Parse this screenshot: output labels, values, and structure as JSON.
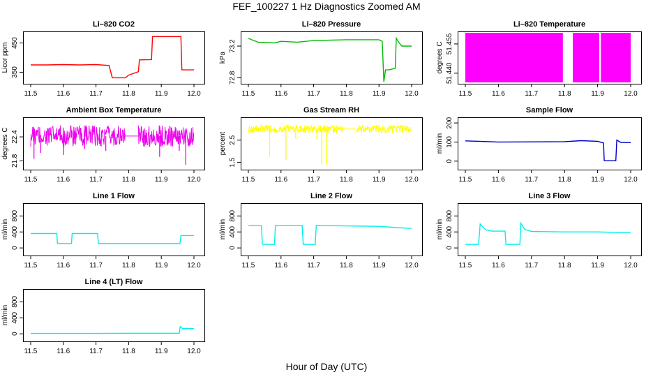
{
  "title": "FEF_100227  1 Hz Diagnostics Zoomed AM",
  "xlabel": "Hour of Day (UTC)",
  "chart_data": [
    {
      "type": "line",
      "title": "Li–820 CO2",
      "ylabel": "Licor ppm",
      "color": "#ff0000",
      "xlim": [
        11.5,
        12.0
      ],
      "xticks": [
        "11.5",
        "11.6",
        "11.7",
        "11.8",
        "11.9",
        "12.0"
      ],
      "ylim": [
        320,
        480
      ],
      "yticks": [
        "350",
        "450"
      ],
      "ytick_values": [
        350,
        450
      ],
      "series": [
        {
          "x": [
            11.5,
            11.55,
            11.6,
            11.65,
            11.7,
            11.74,
            11.75,
            11.753,
            11.79,
            11.8,
            11.83,
            11.833,
            11.87,
            11.873,
            11.96,
            11.963,
            12.0
          ],
          "y": [
            375,
            375,
            376,
            375,
            376,
            373,
            331,
            331,
            331,
            340,
            352,
            392,
            393,
            472,
            472,
            358,
            358
          ]
        }
      ]
    },
    {
      "type": "line",
      "title": "Li–820 Pressure",
      "ylabel": "kPa",
      "color": "#00bb00",
      "xlim": [
        11.5,
        12.0
      ],
      "xticks": [
        "11.5",
        "11.6",
        "11.7",
        "11.8",
        "11.9",
        "12.0"
      ],
      "ylim": [
        72.76,
        73.35
      ],
      "yticks": [
        "72.8",
        "73.2"
      ],
      "ytick_values": [
        72.8,
        73.2
      ],
      "series": [
        {
          "x": [
            11.5,
            11.51,
            11.53,
            11.58,
            11.6,
            11.65,
            11.7,
            11.8,
            11.9,
            11.91,
            11.915,
            11.92,
            11.93,
            11.95,
            11.953,
            11.96,
            11.97,
            12.0
          ],
          "y": [
            73.3,
            73.28,
            73.25,
            73.24,
            73.26,
            73.25,
            73.27,
            73.28,
            73.28,
            73.26,
            72.75,
            72.9,
            72.9,
            72.92,
            73.3,
            73.25,
            73.2,
            73.2
          ]
        }
      ]
    },
    {
      "type": "line",
      "title": "Li–820 Temperature",
      "ylabel": "degrees C",
      "color": "#ff00ff",
      "xlim": [
        11.5,
        12.0
      ],
      "xticks": [
        "11.5",
        "11.6",
        "11.7",
        "11.8",
        "11.9",
        "12.0"
      ],
      "ylim": [
        51.436,
        51.46
      ],
      "yticks": [
        "51.440",
        "51.455"
      ],
      "ytick_values": [
        51.44,
        51.455
      ],
      "blocks": [
        [
          11.5,
          11.795
        ],
        [
          11.825,
          11.905
        ],
        [
          11.91,
          12.0
        ]
      ],
      "spikes": [
        [
          11.51,
          51.446
        ],
        [
          11.845,
          51.444
        ],
        [
          11.87,
          51.448
        ],
        [
          11.935,
          51.444
        ]
      ]
    },
    {
      "type": "line",
      "title": "Ambient Box Temperature",
      "ylabel": "degrees C",
      "color": "#ee00ee",
      "xlim": [
        11.5,
        12.0
      ],
      "xticks": [
        "11.5",
        "11.6",
        "11.7",
        "11.8",
        "11.9",
        "12.0"
      ],
      "ylim": [
        21.65,
        22.82
      ],
      "yticks": [
        "21.8",
        "22.4"
      ],
      "ytick_values": [
        21.8,
        22.4
      ],
      "noise": {
        "center": 22.42,
        "amp": 0.27,
        "gaps": [
          [
            11.79,
            11.83
          ]
        ]
      },
      "spikes": [
        [
          11.51,
          21.85
        ],
        [
          11.53,
          22.0
        ],
        [
          11.6,
          21.95
        ],
        [
          11.665,
          22.1
        ],
        [
          11.73,
          22.05
        ],
        [
          11.895,
          21.9
        ],
        [
          11.955,
          22.05
        ],
        [
          11.975,
          21.7
        ]
      ]
    },
    {
      "type": "line",
      "title": "Gas Stream RH",
      "ylabel": "percent",
      "color": "#ffff00",
      "xlim": [
        11.5,
        12.0
      ],
      "xticks": [
        "11.5",
        "11.6",
        "11.7",
        "11.8",
        "11.9",
        "12.0"
      ],
      "ylim": [
        1.3,
        3.4
      ],
      "yticks": [
        "1.5",
        "2.5"
      ],
      "ytick_values": [
        1.5,
        2.5
      ],
      "noise": {
        "center": 3.0,
        "amp": 0.18,
        "gaps": [
          [
            11.79,
            11.83
          ]
        ]
      },
      "spikes": [
        [
          11.565,
          1.75
        ],
        [
          11.615,
          1.6
        ],
        [
          11.71,
          2.55
        ],
        [
          11.725,
          1.4
        ],
        [
          11.74,
          1.4
        ],
        [
          11.645,
          2.55
        ]
      ]
    },
    {
      "type": "line",
      "title": "Sample Flow",
      "ylabel": "ml/min",
      "color": "#0000cc",
      "xlim": [
        11.5,
        12.0
      ],
      "xticks": [
        "11.5",
        "11.6",
        "11.7",
        "11.8",
        "11.9",
        "12.0"
      ],
      "ylim": [
        -30,
        215
      ],
      "yticks": [
        "0",
        "100",
        "200"
      ],
      "ytick_values": [
        0,
        100,
        200
      ],
      "series": [
        {
          "x": [
            11.5,
            11.55,
            11.6,
            11.7,
            11.8,
            11.85,
            11.9,
            11.918,
            11.92,
            11.955,
            11.958,
            11.97,
            12.0
          ],
          "y": [
            106,
            103,
            100,
            101,
            102,
            107,
            104,
            95,
            2,
            2,
            110,
            98,
            97
          ]
        }
      ]
    },
    {
      "type": "line",
      "title": "Line 1 Flow",
      "ylabel": "ml/min",
      "color": "#00eeee",
      "xlim": [
        11.5,
        12.0
      ],
      "xticks": [
        "11.5",
        "11.6",
        "11.7",
        "11.8",
        "11.9",
        "12.0"
      ],
      "ylim": [
        -120,
        1050
      ],
      "yticks": [
        "0",
        "400",
        "800"
      ],
      "ytick_values": [
        0,
        400,
        800
      ],
      "series": [
        {
          "x": [
            11.5,
            11.58,
            11.582,
            11.625,
            11.627,
            11.705,
            11.707,
            11.957,
            11.96,
            12.0
          ],
          "y": [
            360,
            360,
            110,
            110,
            360,
            360,
            110,
            110,
            310,
            310
          ]
        }
      ]
    },
    {
      "type": "line",
      "title": "Line 2 Flow",
      "ylabel": "ml/min",
      "color": "#00eeee",
      "xlim": [
        11.5,
        12.0
      ],
      "xticks": [
        "11.5",
        "11.6",
        "11.7",
        "11.8",
        "11.9",
        "12.0"
      ],
      "ylim": [
        -120,
        1050
      ],
      "yticks": [
        "0",
        "400",
        "800"
      ],
      "ytick_values": [
        0,
        400,
        800
      ],
      "series": [
        {
          "x": [
            11.5,
            11.54,
            11.543,
            11.58,
            11.583,
            11.665,
            11.668,
            11.705,
            11.708,
            11.8,
            11.9,
            11.97,
            12.0
          ],
          "y": [
            560,
            560,
            90,
            90,
            560,
            560,
            90,
            90,
            560,
            550,
            540,
            500,
            490
          ]
        }
      ]
    },
    {
      "type": "line",
      "title": "Line 3 Flow",
      "ylabel": "ml/min",
      "color": "#00eeee",
      "xlim": [
        11.5,
        12.0
      ],
      "xticks": [
        "11.5",
        "11.6",
        "11.7",
        "11.8",
        "11.9",
        "12.0"
      ],
      "ylim": [
        -120,
        1050
      ],
      "yticks": [
        "0",
        "400",
        "800"
      ],
      "ytick_values": [
        0,
        400,
        800
      ],
      "series": [
        {
          "x": [
            11.5,
            11.54,
            11.545,
            11.56,
            11.58,
            11.62,
            11.623,
            11.665,
            11.668,
            11.68,
            11.7,
            11.8,
            11.9,
            12.0
          ],
          "y": [
            90,
            90,
            600,
            460,
            420,
            420,
            90,
            90,
            620,
            460,
            410,
            400,
            400,
            380
          ]
        }
      ]
    },
    {
      "type": "line",
      "title": "Line 4 (LT) Flow",
      "ylabel": "ml/min",
      "color": "#00eeee",
      "xlim": [
        11.5,
        12.0
      ],
      "xticks": [
        "11.5",
        "11.6",
        "11.7",
        "11.8",
        "11.9",
        "12.0"
      ],
      "ylim": [
        -120,
        1050
      ],
      "yticks": [
        "0",
        "400",
        "800"
      ],
      "ytick_values": [
        0,
        400,
        800
      ],
      "series": [
        {
          "x": [
            11.5,
            11.6,
            11.7,
            11.8,
            11.9,
            11.955,
            11.958,
            11.965,
            12.0
          ],
          "y": [
            10,
            10,
            10,
            15,
            15,
            15,
            180,
            130,
            130
          ]
        }
      ]
    }
  ]
}
